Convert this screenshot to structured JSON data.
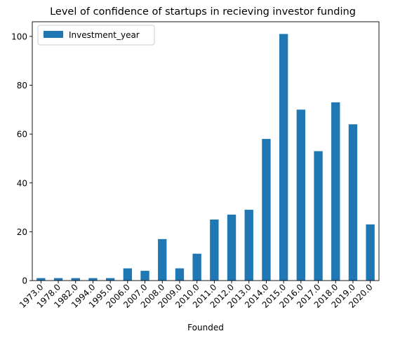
{
  "chart_data": {
    "type": "bar",
    "title": "Level of confidence of startups in recieving investor funding",
    "xlabel": "Founded",
    "ylabel": "",
    "categories": [
      "1973.0",
      "1978.0",
      "1982.0",
      "1994.0",
      "1995.0",
      "2006.0",
      "2007.0",
      "2008.0",
      "2009.0",
      "2010.0",
      "2011.0",
      "2012.0",
      "2013.0",
      "2014.0",
      "2015.0",
      "2016.0",
      "2017.0",
      "2018.0",
      "2019.0",
      "2020.0"
    ],
    "series": [
      {
        "name": "Investment_year",
        "color": "#1f77b4",
        "values": [
          1,
          1,
          1,
          1,
          1,
          5,
          4,
          17,
          5,
          11,
          25,
          27,
          29,
          58,
          101,
          70,
          53,
          73,
          64,
          23
        ]
      }
    ],
    "ylim": [
      0,
      106
    ],
    "yticks": [
      0,
      20,
      40,
      60,
      80,
      100
    ],
    "legend_position": "top-left",
    "grid": false
  }
}
